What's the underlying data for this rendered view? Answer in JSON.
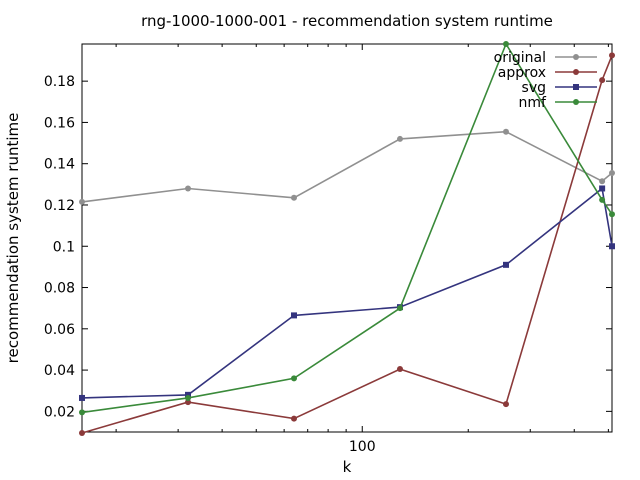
{
  "chart_data": {
    "type": "line",
    "title": "rng-1000-1000-001 - recommendation system runtime",
    "xlabel": "k",
    "ylabel": "recommendation system runtime",
    "xscale": "log",
    "xlim": [
      16,
      512
    ],
    "ylim": [
      0.01,
      0.198
    ],
    "x_tick_labels": [
      {
        "value": 100,
        "label": "100"
      }
    ],
    "y_ticks": [
      {
        "value": 0.02,
        "label": "0.02"
      },
      {
        "value": 0.04,
        "label": "0.04"
      },
      {
        "value": 0.06,
        "label": "0.06"
      },
      {
        "value": 0.08,
        "label": "0.08"
      },
      {
        "value": 0.1,
        "label": "0.1"
      },
      {
        "value": 0.12,
        "label": "0.12"
      },
      {
        "value": 0.14,
        "label": "0.14"
      },
      {
        "value": 0.16,
        "label": "0.16"
      },
      {
        "value": 0.18,
        "label": "0.18"
      }
    ],
    "grid": false,
    "legend_position": "top-right",
    "series": [
      {
        "name": "original",
        "color": "#909090",
        "marker": "circle",
        "points": [
          [
            16,
            0.1215
          ],
          [
            32,
            0.128
          ],
          [
            64,
            0.1235
          ],
          [
            128,
            0.152
          ],
          [
            256,
            0.1555
          ],
          [
            480,
            0.1315
          ],
          [
            512,
            0.1355
          ]
        ]
      },
      {
        "name": "approx",
        "color": "#8b3a3a",
        "marker": "circle",
        "points": [
          [
            16,
            0.0095
          ],
          [
            32,
            0.0245
          ],
          [
            64,
            0.0165
          ],
          [
            128,
            0.0405
          ],
          [
            256,
            0.0235
          ],
          [
            480,
            0.1805
          ],
          [
            512,
            0.1925
          ]
        ]
      },
      {
        "name": "svg",
        "color": "#34347e",
        "marker": "square",
        "points": [
          [
            16,
            0.0265
          ],
          [
            32,
            0.028
          ],
          [
            64,
            0.0665
          ],
          [
            128,
            0.0705
          ],
          [
            256,
            0.091
          ],
          [
            480,
            0.128
          ],
          [
            512,
            0.1
          ]
        ]
      },
      {
        "name": "nmf",
        "color": "#3a8a3a",
        "marker": "circle",
        "points": [
          [
            16,
            0.0195
          ],
          [
            32,
            0.0265
          ],
          [
            64,
            0.036
          ],
          [
            128,
            0.07
          ],
          [
            256,
            0.198
          ],
          [
            480,
            0.1225
          ],
          [
            512,
            0.1155
          ]
        ]
      }
    ]
  }
}
